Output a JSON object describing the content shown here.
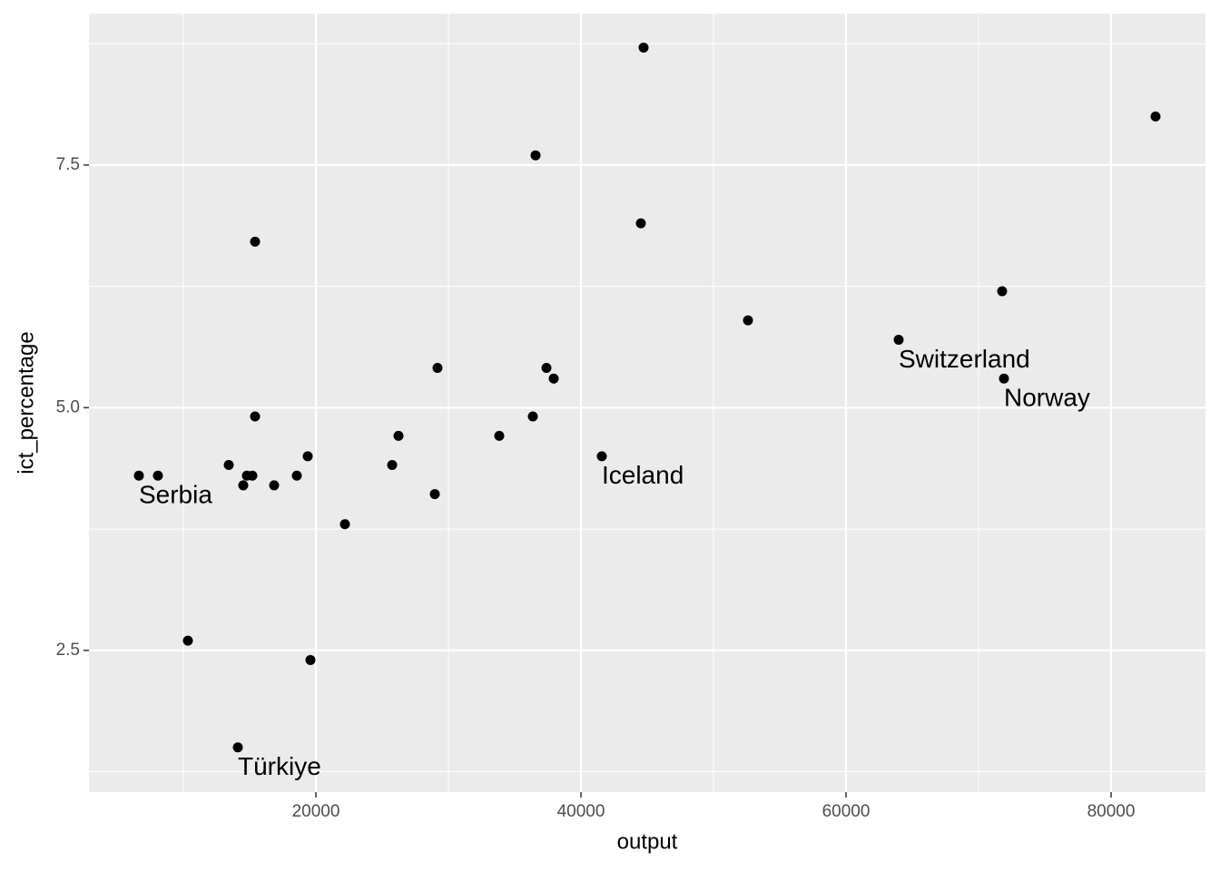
{
  "chart_data": {
    "type": "scatter",
    "x_label": "output",
    "y_label": "ict_percentage",
    "x": [
      44726,
      83356,
      36575,
      44521,
      15411,
      71781,
      52603,
      63973,
      29178,
      37397,
      37945,
      71918,
      15411,
      36370,
      26233,
      33836,
      19384,
      41575,
      13425,
      25753,
      6644,
      8082,
      14795,
      15205,
      18562,
      14521,
      16849,
      28973,
      22192,
      10342,
      19589,
      14110
    ],
    "values": [
      8.71,
      8.0,
      7.6,
      6.9,
      6.71,
      6.2,
      5.9,
      5.7,
      5.41,
      5.41,
      5.3,
      5.3,
      4.91,
      4.91,
      4.71,
      4.71,
      4.5,
      4.5,
      4.41,
      4.41,
      4.3,
      4.3,
      4.3,
      4.3,
      4.3,
      4.2,
      4.2,
      4.11,
      3.8,
      2.6,
      2.4,
      1.5
    ],
    "labels": [
      null,
      null,
      null,
      null,
      null,
      null,
      null,
      "Switzerland",
      null,
      null,
      null,
      "Norway",
      null,
      null,
      null,
      null,
      null,
      "Iceland",
      null,
      null,
      "Serbia",
      null,
      null,
      null,
      null,
      null,
      null,
      null,
      null,
      null,
      null,
      "Türkiye"
    ],
    "color": "#000000",
    "xlim": [
      2877,
      87123
    ],
    "ylim": [
      1.04,
      9.06
    ],
    "xticks": [
      20000,
      40000,
      60000,
      80000
    ],
    "yticks": [
      2.5,
      5.0,
      7.5
    ],
    "x_minor_ticks": [
      10000,
      30000,
      50000,
      70000
    ],
    "y_minor_ticks": [
      1.25,
      3.75,
      6.25,
      8.75
    ],
    "grid": true
  }
}
